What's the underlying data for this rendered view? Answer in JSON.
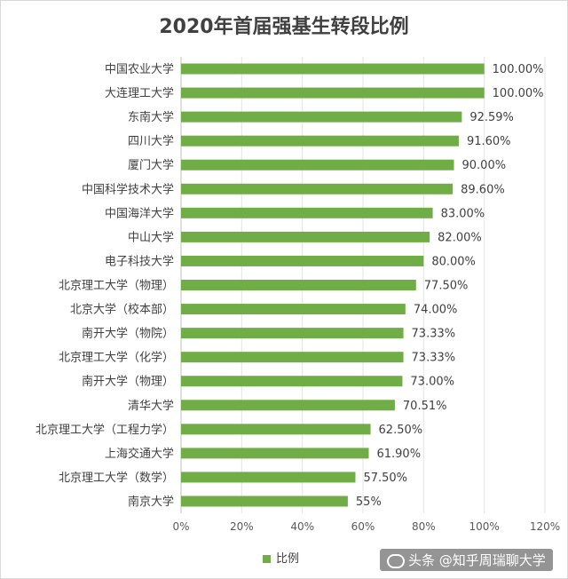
{
  "chart_data": {
    "type": "bar",
    "orientation": "horizontal",
    "title": "2020年首届强基生转段比例",
    "categories": [
      "中国农业大学",
      "大连理工大学",
      "东南大学",
      "四川大学",
      "厦门大学",
      "中国科学技术大学",
      "中国海洋大学",
      "中山大学",
      "电子科技大学",
      "北京理工大学（物理）",
      "北京大学（校本部）",
      "南开大学（物院）",
      "北京理工大学（化学）",
      "南开大学（物理）",
      "清华大学",
      "北京理工大学（工程力学）",
      "上海交通大学",
      "北京理工大学（数学）",
      "南京大学"
    ],
    "values": [
      100,
      100,
      92.59,
      91.6,
      90,
      89.6,
      83,
      82,
      80,
      77.5,
      74,
      73.33,
      73.33,
      73,
      70.51,
      62.5,
      61.9,
      57.5,
      55
    ],
    "value_labels": [
      "100.00%",
      "100.00%",
      "92.59%",
      "91.60%",
      "90.00%",
      "89.60%",
      "83.00%",
      "82.00%",
      "80.00%",
      "77.50%",
      "74.00%",
      "73.33%",
      "73.33%",
      "73.00%",
      "70.51%",
      "62.50%",
      "61.90%",
      "57.50%",
      "55%"
    ],
    "xlim": [
      0,
      120
    ],
    "x_ticks": [
      "0%",
      "20%",
      "40%",
      "60%",
      "80%",
      "100%",
      "120%"
    ],
    "series": [
      {
        "name": "比例",
        "color": "#70ad47"
      }
    ],
    "grid": true,
    "legend_position": "bottom"
  },
  "watermark": {
    "text": "头条 @知乎周瑞聊大学"
  }
}
